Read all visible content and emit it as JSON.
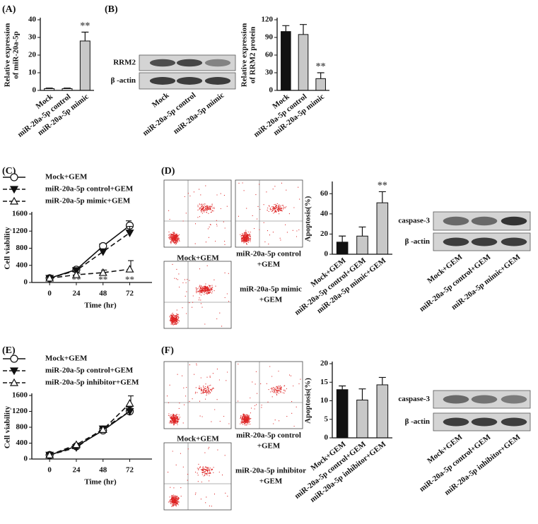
{
  "figure": {
    "panels": [
      "(A)",
      "(B)",
      "(C)",
      "(D)",
      "(E)",
      "(F)"
    ],
    "blot_b": {
      "rows": [
        "RRM2",
        "β -actin"
      ],
      "lanes": [
        "Mock",
        "miR-20a-5p control",
        "miR-20a-5p mimic"
      ]
    },
    "blot_d": {
      "rows": [
        "caspase-3",
        "β -actin"
      ],
      "lanes": [
        "Mock+GEM",
        "miR-20a-5p control+GEM",
        "miR-20a-5p mimic+GEM"
      ]
    },
    "blot_f": {
      "rows": [
        "caspase-3",
        "β -actin"
      ],
      "lanes": [
        "Mock+GEM",
        "miR-20a-5p control+GEM",
        "miR-20a-5p inhibitor+GEM"
      ]
    },
    "flow_d": [
      [
        "Mock+GEM"
      ],
      [
        "miR-20a-5p control",
        "+GEM"
      ],
      [
        "miR-20a-5p mimic",
        "+GEM"
      ]
    ],
    "flow_f": [
      [
        "Mock+GEM"
      ],
      [
        "miR-20a-5p control",
        "+GEM"
      ],
      [
        "miR-20a-5p inhibitor",
        "+GEM"
      ]
    ]
  },
  "chart_data": [
    {
      "type": "bar",
      "ylabel": [
        "Relative expression",
        "of miR-20a-5p"
      ],
      "categories": [
        "Mock",
        "miR-20a-5p control",
        "miR-20a-5p mimic"
      ],
      "values": [
        1,
        1,
        28
      ],
      "errors": [
        0.3,
        0.3,
        5
      ],
      "colors": [
        "#ffffff",
        "#ffffff",
        "#c8c8c8"
      ],
      "ylim": [
        0,
        40
      ],
      "yticks": [
        0,
        10,
        20,
        30,
        40
      ],
      "annotations": [
        {
          "category": "miR-20a-5p mimic",
          "text": "**"
        }
      ]
    },
    {
      "type": "bar",
      "ylabel": [
        "Relative expression",
        "of RRM2 protein"
      ],
      "categories": [
        "Mock",
        "miR-20a-5p control",
        "miR-20a-5p mimic"
      ],
      "values": [
        100,
        95,
        20
      ],
      "errors": [
        10,
        17,
        10
      ],
      "colors": [
        "#111111",
        "#c8c8c8",
        "#c8c8c8"
      ],
      "ylim": [
        0,
        120
      ],
      "yticks": [
        0,
        30,
        60,
        90,
        120
      ],
      "annotations": [
        {
          "category": "miR-20a-5p mimic",
          "text": "**"
        }
      ]
    },
    {
      "type": "line",
      "ylabel": [
        "Cell viability"
      ],
      "xlabel": "Time (hr)",
      "x": [
        0,
        24,
        48,
        72
      ],
      "xlim": [
        -16,
        92
      ],
      "xticks": [
        0,
        24,
        48,
        72
      ],
      "ylim": [
        0,
        1600
      ],
      "yticks": [
        0,
        400,
        800,
        1200,
        1600
      ],
      "series": [
        {
          "name": "Mock+GEM",
          "marker": "circle",
          "dashed": false,
          "values": [
            100,
            300,
            850,
            1330
          ],
          "errors": [
            20,
            40,
            50,
            110
          ]
        },
        {
          "name": "miR-20a-5p control+GEM",
          "marker": "down",
          "dashed": true,
          "values": [
            100,
            280,
            720,
            1160
          ],
          "errors": [
            20,
            40,
            60,
            150
          ]
        },
        {
          "name": "miR-20a-5p mimic+GEM",
          "marker": "up",
          "dashed": true,
          "values": [
            100,
            180,
            230,
            310
          ],
          "errors": [
            20,
            40,
            60,
            200
          ]
        }
      ],
      "annotations": [
        {
          "x": 24,
          "text": "**"
        },
        {
          "x": 48,
          "text": "**"
        },
        {
          "x": 72,
          "text": "**"
        }
      ]
    },
    {
      "type": "bar",
      "ylabel": [
        "Apoptosis(%)"
      ],
      "categories": [
        "Mock+GEM",
        "miR-20a-5p control+GEM",
        "miR-20a-5p mimic+GEM"
      ],
      "values": [
        12,
        18,
        51
      ],
      "errors": [
        6,
        9,
        11
      ],
      "colors": [
        "#111111",
        "#c8c8c8",
        "#c8c8c8"
      ],
      "ylim": [
        0,
        70
      ],
      "yticks": [
        0,
        20,
        40,
        60
      ],
      "annotations": [
        {
          "category": "miR-20a-5p mimic+GEM",
          "text": "**"
        }
      ]
    },
    {
      "type": "line",
      "ylabel": [
        "Cell viability"
      ],
      "xlabel": "Time (hr)",
      "x": [
        0,
        24,
        48,
        72
      ],
      "xlim": [
        -16,
        92
      ],
      "xticks": [
        0,
        24,
        48,
        72
      ],
      "ylim": [
        0,
        1600
      ],
      "yticks": [
        0,
        400,
        800,
        1200,
        1600
      ],
      "series": [
        {
          "name": "Mock+GEM",
          "marker": "circle",
          "dashed": false,
          "values": [
            100,
            320,
            720,
            1200
          ],
          "errors": [
            20,
            30,
            60,
            110
          ]
        },
        {
          "name": "miR-20a-5p control+GEM",
          "marker": "down",
          "dashed": true,
          "values": [
            100,
            290,
            760,
            1200
          ],
          "errors": [
            20,
            30,
            70,
            110
          ]
        },
        {
          "name": "miR-20a-5p inhibitor+GEM",
          "marker": "up",
          "dashed": true,
          "values": [
            100,
            360,
            740,
            1400
          ],
          "errors": [
            20,
            40,
            70,
            190
          ]
        }
      ],
      "annotations": []
    },
    {
      "type": "bar",
      "ylabel": [
        "Apoptosis(%)"
      ],
      "categories": [
        "Mock+GEM",
        "miR-20a-5p control+GEM",
        "miR-20a-5p inhibitor+GEM"
      ],
      "values": [
        13,
        10.2,
        14.3
      ],
      "errors": [
        1,
        3,
        2
      ],
      "colors": [
        "#111111",
        "#c8c8c8",
        "#c8c8c8"
      ],
      "ylim": [
        0,
        20
      ],
      "yticks": [
        0,
        5,
        10,
        15,
        20
      ],
      "annotations": []
    }
  ]
}
